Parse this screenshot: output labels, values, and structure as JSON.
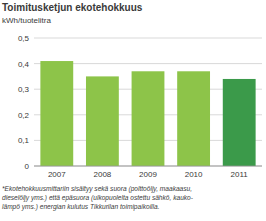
{
  "chart_data": {
    "type": "bar",
    "title": "Toimitusketjun ekotehokkuus",
    "subtitle": "kWh/tuotelitra",
    "categories": [
      "2007",
      "2008",
      "2009",
      "2010",
      "2011"
    ],
    "values": [
      0.41,
      0.35,
      0.37,
      0.37,
      0.34
    ],
    "colors": [
      "#8dc449",
      "#8dc449",
      "#8dc449",
      "#8dc449",
      "#3b9a4a"
    ],
    "ylim": [
      0,
      0.5
    ],
    "yticks": [
      0,
      {
        "value": 0.1,
        "label": "0,1"
      },
      {
        "value": 0.2,
        "label": "0,2"
      },
      {
        "value": 0.3,
        "label": "0,3"
      },
      {
        "value": 0.4,
        "label": "0,4"
      },
      {
        "value": 0.5,
        "label": "0,5"
      }
    ],
    "grid": true,
    "annotations": [
      "*Ekotehokkuusmittariin sisältyy sekä suora (polttoöljy, maakaasu,",
      "dieselöljy yms.) että epäsuora (ulkopuolelta ostettu sähkö, kauko-",
      "lämpö yms.) energian kulutus Tikkurilan toimipaikoilla."
    ]
  }
}
